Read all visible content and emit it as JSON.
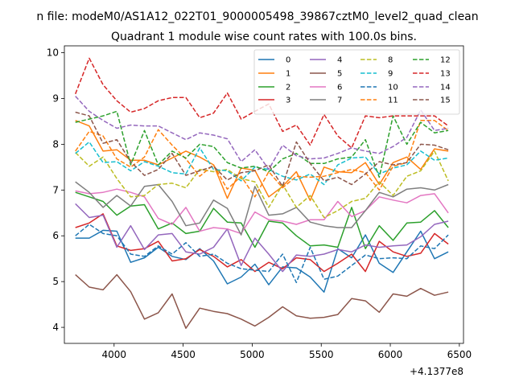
{
  "chart_data": {
    "type": "line",
    "suptitle": "n file: modeM0/AS1A12_022T01_9000005498_39867cztM0_level2_quad_clean",
    "title": "Quadrant 1 module wise count rates with 100.0s bins.",
    "xlabel": "",
    "ylabel": "",
    "offset_text": "+4.1377e8",
    "xlim": [
      3640,
      6530
    ],
    "ylim": [
      3.65,
      10.15
    ],
    "xticks": [
      4000,
      4500,
      5000,
      5500,
      6000,
      6500
    ],
    "xtick_labels": [
      "4000",
      "4500",
      "5000",
      "5500",
      "6000",
      "6500"
    ],
    "yticks": [
      4,
      5,
      6,
      7,
      8,
      9,
      10
    ],
    "ytick_labels": [
      "4",
      "5",
      "6",
      "7",
      "8",
      "9",
      "10"
    ],
    "grid": false,
    "legend_position": "top-right",
    "x": [
      3720,
      3820,
      3920,
      4020,
      4120,
      4220,
      4320,
      4420,
      4520,
      4620,
      4720,
      4820,
      4920,
      5020,
      5120,
      5220,
      5320,
      5420,
      5520,
      5620,
      5720,
      5820,
      5920,
      6020,
      6120,
      6220,
      6320,
      6420
    ],
    "series": [
      {
        "name": "0",
        "color": "#1f77b4",
        "dash": "solid",
        "values": [
          5.95,
          5.95,
          6.12,
          6.1,
          5.42,
          5.52,
          5.75,
          5.55,
          5.48,
          5.72,
          5.45,
          4.95,
          5.1,
          5.38,
          4.93,
          5.32,
          5.3,
          5.1,
          4.77,
          5.72,
          5.52,
          6.02,
          5.4,
          5.2,
          5.65,
          6.1,
          5.5,
          5.65
        ]
      },
      {
        "name": "1",
        "color": "#ff7f0e",
        "dash": "solid",
        "values": [
          8.52,
          8.4,
          7.85,
          7.88,
          7.65,
          7.65,
          7.55,
          7.7,
          7.85,
          7.72,
          7.55,
          6.82,
          7.48,
          7.43,
          6.85,
          7.08,
          7.4,
          6.77,
          7.5,
          7.4,
          7.38,
          7.6,
          7.12,
          7.6,
          7.72,
          7.45,
          7.9,
          7.85
        ]
      },
      {
        "name": "2",
        "color": "#2ca02c",
        "dash": "solid",
        "values": [
          6.95,
          6.85,
          6.75,
          6.45,
          6.65,
          6.68,
          6.15,
          6.28,
          6.05,
          6.1,
          6.6,
          6.3,
          6.28,
          5.75,
          6.32,
          6.28,
          6.0,
          5.78,
          5.8,
          5.75,
          6.62,
          5.72,
          6.22,
          5.9,
          6.28,
          6.3,
          6.55,
          6.18
        ]
      },
      {
        "name": "3",
        "color": "#d62728",
        "dash": "solid",
        "values": [
          6.18,
          6.28,
          6.48,
          5.78,
          5.68,
          5.72,
          5.88,
          5.45,
          5.5,
          5.7,
          5.55,
          5.32,
          5.48,
          5.22,
          5.42,
          5.28,
          5.52,
          5.48,
          5.22,
          5.4,
          5.6,
          5.22,
          5.88,
          5.65,
          5.55,
          5.62,
          6.05,
          5.82
        ]
      },
      {
        "name": "4",
        "color": "#9467bd",
        "dash": "solid",
        "values": [
          6.7,
          6.4,
          6.45,
          5.75,
          6.22,
          5.7,
          6.02,
          6.05,
          5.65,
          5.6,
          5.75,
          6.15,
          5.35,
          5.95,
          5.6,
          5.22,
          5.58,
          5.55,
          5.6,
          5.7,
          5.65,
          5.8,
          5.75,
          5.78,
          5.8,
          5.98,
          6.25,
          6.32
        ]
      },
      {
        "name": "5",
        "color": "#8c564b",
        "dash": "solid",
        "values": [
          5.15,
          4.88,
          4.82,
          5.15,
          4.78,
          4.18,
          4.32,
          4.73,
          3.98,
          4.42,
          4.35,
          4.3,
          4.18,
          4.03,
          4.22,
          4.45,
          4.25,
          4.2,
          4.22,
          4.28,
          4.63,
          4.58,
          4.33,
          4.73,
          4.68,
          4.85,
          4.7,
          4.77
        ]
      },
      {
        "name": "6",
        "color": "#e377c2",
        "dash": "solid",
        "values": [
          6.98,
          6.92,
          6.95,
          7.02,
          6.95,
          6.85,
          6.38,
          6.25,
          6.62,
          6.1,
          6.18,
          6.15,
          6.05,
          6.52,
          6.35,
          6.32,
          6.25,
          6.35,
          6.35,
          6.75,
          6.42,
          6.55,
          6.85,
          6.78,
          6.72,
          6.88,
          6.92,
          6.5
        ]
      },
      {
        "name": "7",
        "color": "#7f7f7f",
        "dash": "solid",
        "values": [
          7.18,
          6.95,
          6.62,
          6.88,
          6.65,
          7.08,
          7.12,
          6.75,
          6.22,
          6.28,
          6.78,
          6.6,
          6.02,
          7.08,
          6.45,
          6.48,
          6.62,
          6.3,
          6.22,
          6.18,
          6.18,
          6.55,
          6.95,
          6.85,
          7.02,
          7.05,
          7.0,
          7.12
        ]
      },
      {
        "name": "8",
        "color": "#bcbd22",
        "dash": "dashed",
        "values": [
          7.82,
          7.52,
          7.72,
          7.25,
          6.85,
          6.88,
          7.12,
          7.15,
          7.05,
          7.45,
          7.4,
          7.45,
          7.25,
          7.18,
          6.62,
          7.12,
          6.62,
          6.88,
          6.4,
          6.55,
          6.75,
          6.82,
          7.18,
          6.88,
          7.3,
          7.42,
          7.85,
          7.2
        ]
      },
      {
        "name": "9",
        "color": "#17becf",
        "dash": "dashed",
        "values": [
          7.8,
          8.05,
          7.6,
          7.62,
          7.42,
          7.62,
          7.52,
          7.38,
          7.35,
          7.92,
          7.45,
          7.42,
          7.2,
          7.5,
          7.45,
          7.3,
          7.22,
          7.35,
          7.12,
          7.55,
          7.7,
          7.72,
          7.35,
          7.48,
          7.55,
          7.85,
          7.65,
          7.7
        ]
      },
      {
        "name": "10",
        "color": "#1f77b4",
        "dash": "dashed",
        "values": [
          6.0,
          6.25,
          6.05,
          6.0,
          5.6,
          5.55,
          5.78,
          5.6,
          5.85,
          5.55,
          5.6,
          5.4,
          5.28,
          5.25,
          5.22,
          5.6,
          4.98,
          5.75,
          5.05,
          5.12,
          5.35,
          5.58,
          5.5,
          5.52,
          5.5,
          5.78,
          5.72,
          6.02
        ]
      },
      {
        "name": "11",
        "color": "#ff7f0e",
        "dash": "dashed",
        "values": [
          7.85,
          8.28,
          8.18,
          7.68,
          7.5,
          7.72,
          8.32,
          7.98,
          7.68,
          7.3,
          7.55,
          7.02,
          7.3,
          6.85,
          7.4,
          7.05,
          7.3,
          7.28,
          7.3,
          7.38,
          7.45,
          7.38,
          7.0,
          7.52,
          7.6,
          8.52,
          8.52,
          8.3
        ]
      },
      {
        "name": "12",
        "color": "#2ca02c",
        "dash": "dashed",
        "values": [
          8.48,
          8.55,
          8.62,
          8.72,
          7.55,
          8.3,
          7.55,
          7.85,
          7.7,
          8.0,
          7.95,
          7.6,
          7.48,
          7.52,
          7.4,
          7.68,
          7.8,
          7.58,
          7.58,
          7.68,
          7.72,
          8.1,
          7.28,
          8.62,
          8.0,
          8.48,
          8.25,
          8.3
        ]
      },
      {
        "name": "13",
        "color": "#d62728",
        "dash": "dashed",
        "values": [
          9.1,
          9.88,
          9.3,
          8.95,
          8.7,
          8.78,
          8.95,
          9.02,
          9.02,
          8.58,
          8.68,
          9.12,
          8.55,
          8.72,
          8.88,
          8.28,
          8.42,
          7.98,
          8.65,
          8.18,
          7.92,
          8.62,
          8.58,
          8.62,
          8.62,
          8.62,
          8.62,
          8.4
        ]
      },
      {
        "name": "14",
        "color": "#9467bd",
        "dash": "dashed",
        "values": [
          9.05,
          8.72,
          8.52,
          8.35,
          8.42,
          8.4,
          8.4,
          8.25,
          8.1,
          8.25,
          8.2,
          8.12,
          7.62,
          7.88,
          7.45,
          7.98,
          7.75,
          7.68,
          7.7,
          7.8,
          7.92,
          7.85,
          7.8,
          7.95,
          8.15,
          8.75,
          8.3,
          8.35
        ]
      },
      {
        "name": "15",
        "color": "#8c564b",
        "dash": "dashed",
        "values": [
          8.7,
          8.62,
          8.02,
          8.1,
          7.62,
          7.32,
          7.45,
          7.8,
          7.32,
          7.42,
          7.52,
          7.22,
          7.38,
          7.42,
          7.55,
          7.08,
          8.05,
          7.58,
          7.2,
          7.28,
          7.12,
          7.35,
          7.62,
          7.55,
          7.6,
          8.0,
          7.98,
          7.88
        ]
      }
    ]
  }
}
